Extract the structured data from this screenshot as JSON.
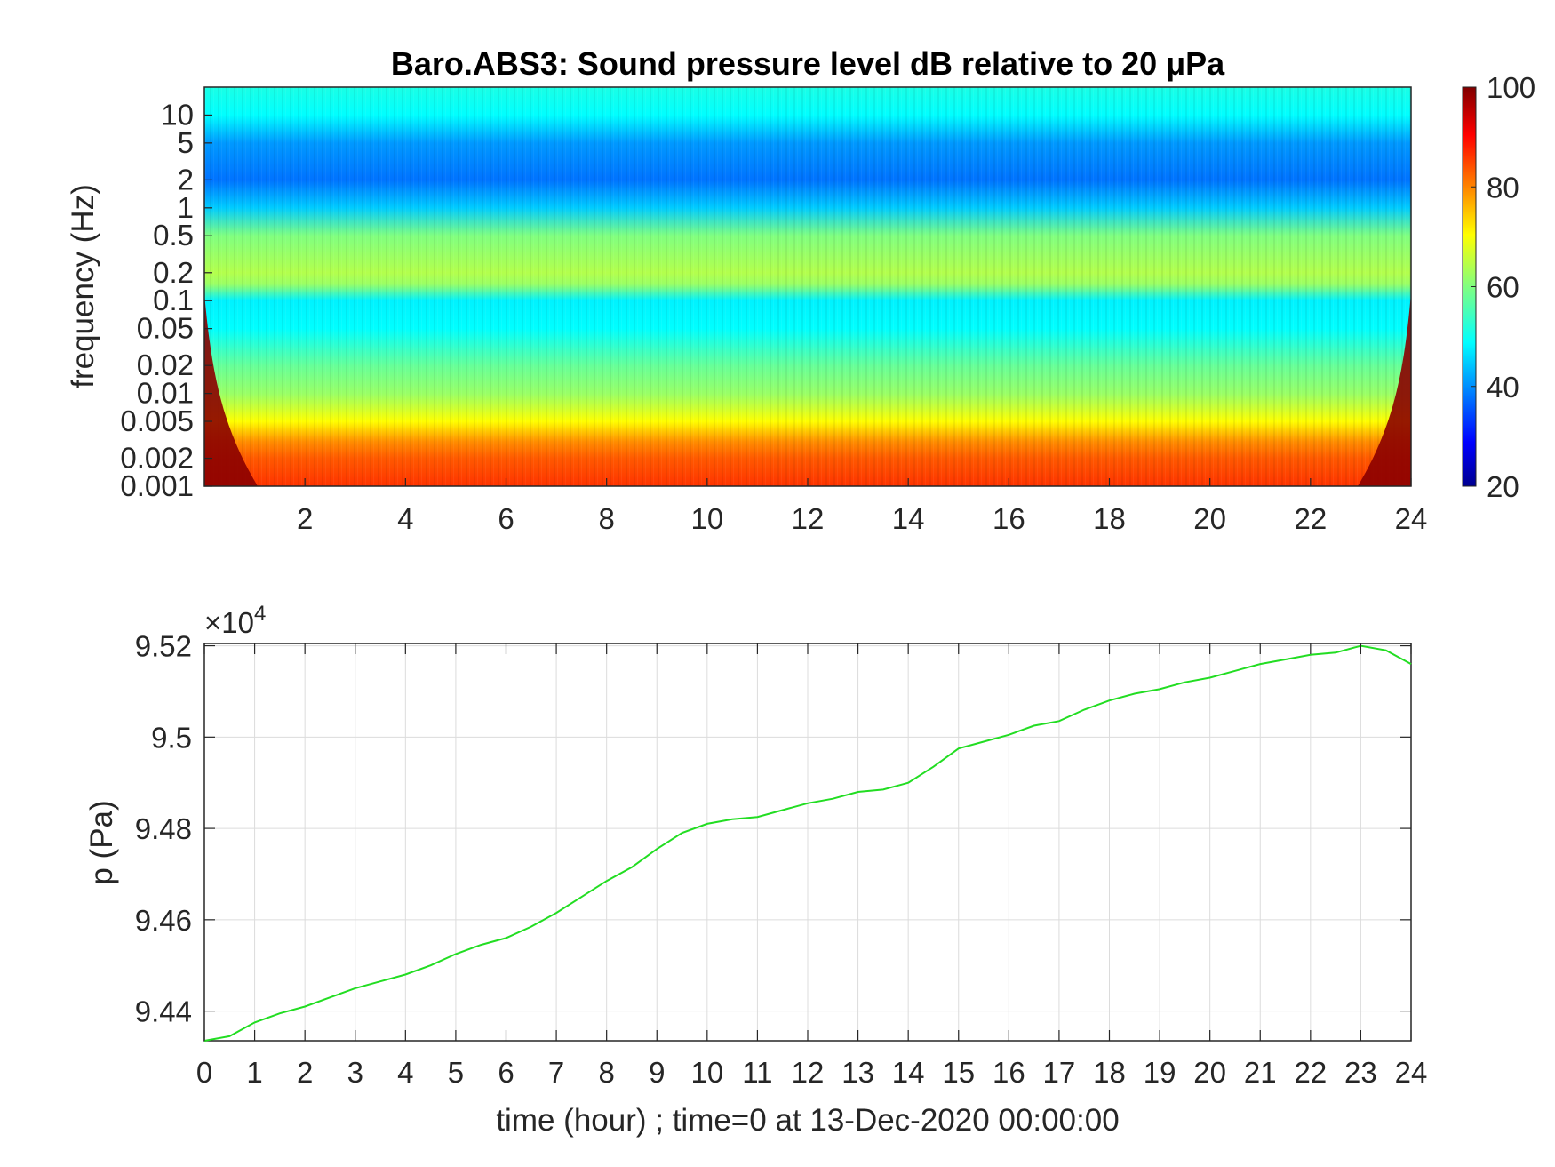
{
  "figure": {
    "spectrogram": {
      "type": "heatmap",
      "title": "Baro.ABS3: Sound pressure level dB relative to 20 μPa",
      "ylabel": "frequency (Hz)",
      "xlabel": "",
      "xlim": [
        0,
        24
      ],
      "ylim": [
        0.001,
        20
      ],
      "yscale": "log",
      "xticks": [
        2,
        4,
        6,
        8,
        10,
        12,
        14,
        16,
        18,
        20,
        22,
        24
      ],
      "xtick_labels": [
        "2",
        "4",
        "6",
        "8",
        "10",
        "12",
        "14",
        "16",
        "18",
        "20",
        "22",
        "24"
      ],
      "yticks": [
        0.001,
        0.002,
        0.005,
        0.01,
        0.02,
        0.05,
        0.1,
        0.2,
        0.5,
        1,
        2,
        5,
        10
      ],
      "ytick_labels": [
        "0.001",
        "0.002",
        "0.005",
        "0.01",
        "0.02",
        "0.05",
        "0.1",
        "0.2",
        "0.5",
        "1",
        "2",
        "5",
        "10"
      ],
      "colormap": "jet",
      "colorbar": {
        "range": [
          20,
          100
        ],
        "ticks": [
          20,
          40,
          60,
          80,
          100
        ],
        "tick_labels": [
          "20",
          "40",
          "60",
          "80",
          "100"
        ]
      },
      "level_profile_dB": {
        "freq_hz": [
          0.001,
          0.002,
          0.003,
          0.005,
          0.007,
          0.01,
          0.02,
          0.05,
          0.1,
          0.15,
          0.2,
          0.5,
          1,
          2,
          5,
          10,
          20
        ],
        "level_db": [
          86,
          83,
          79,
          70,
          66,
          62,
          58,
          50,
          49,
          62,
          64,
          60,
          46,
          39,
          42,
          50,
          52
        ]
      },
      "edge_note": "cone of influence at both time edges"
    },
    "pressure": {
      "type": "line",
      "xlabel": "time (hour) ; time=0 at 13-Dec-2020 00:00:00",
      "ylabel": "p (Pa)",
      "exponent_label": "×10",
      "exponent_power": "4",
      "xlim": [
        0,
        24
      ],
      "ylim": [
        94335,
        95205
      ],
      "xticks": [
        0,
        1,
        2,
        3,
        4,
        5,
        6,
        7,
        8,
        9,
        10,
        11,
        12,
        13,
        14,
        15,
        16,
        17,
        18,
        19,
        20,
        21,
        22,
        23,
        24
      ],
      "xtick_labels": [
        "0",
        "1",
        "2",
        "3",
        "4",
        "5",
        "6",
        "7",
        "8",
        "9",
        "10",
        "11",
        "12",
        "13",
        "14",
        "15",
        "16",
        "17",
        "18",
        "19",
        "20",
        "21",
        "22",
        "23",
        "24"
      ],
      "yticks": [
        94400,
        94600,
        94800,
        95000,
        95200
      ],
      "ytick_labels": [
        "9.44",
        "9.46",
        "9.48",
        "9.5",
        "9.52"
      ],
      "grid": true,
      "line_color": "#22dd22",
      "series": [
        {
          "x": [
            0,
            0.5,
            1,
            1.5,
            2,
            2.5,
            3,
            3.5,
            4,
            4.5,
            5,
            5.5,
            6,
            6.5,
            7,
            7.5,
            8,
            8.5,
            9,
            9.5,
            10,
            10.5,
            11,
            11.5,
            12,
            12.5,
            13,
            13.5,
            14,
            14.5,
            15,
            15.5,
            16,
            16.5,
            17,
            17.5,
            18,
            18.5,
            19,
            19.5,
            20,
            20.5,
            21,
            21.5,
            22,
            22.5,
            23,
            23.5,
            24
          ],
          "y": [
            94335,
            94345,
            94375,
            94395,
            94410,
            94430,
            94450,
            94465,
            94480,
            94500,
            94525,
            94545,
            94560,
            94585,
            94615,
            94650,
            94685,
            94715,
            94755,
            94790,
            94810,
            94820,
            94825,
            94840,
            94855,
            94865,
            94880,
            94885,
            94900,
            94935,
            94975,
            94990,
            95005,
            95025,
            95035,
            95060,
            95080,
            95095,
            95105,
            95120,
            95130,
            95145,
            95160,
            95170,
            95180,
            95185,
            95200,
            95190,
            95160
          ]
        }
      ]
    }
  }
}
